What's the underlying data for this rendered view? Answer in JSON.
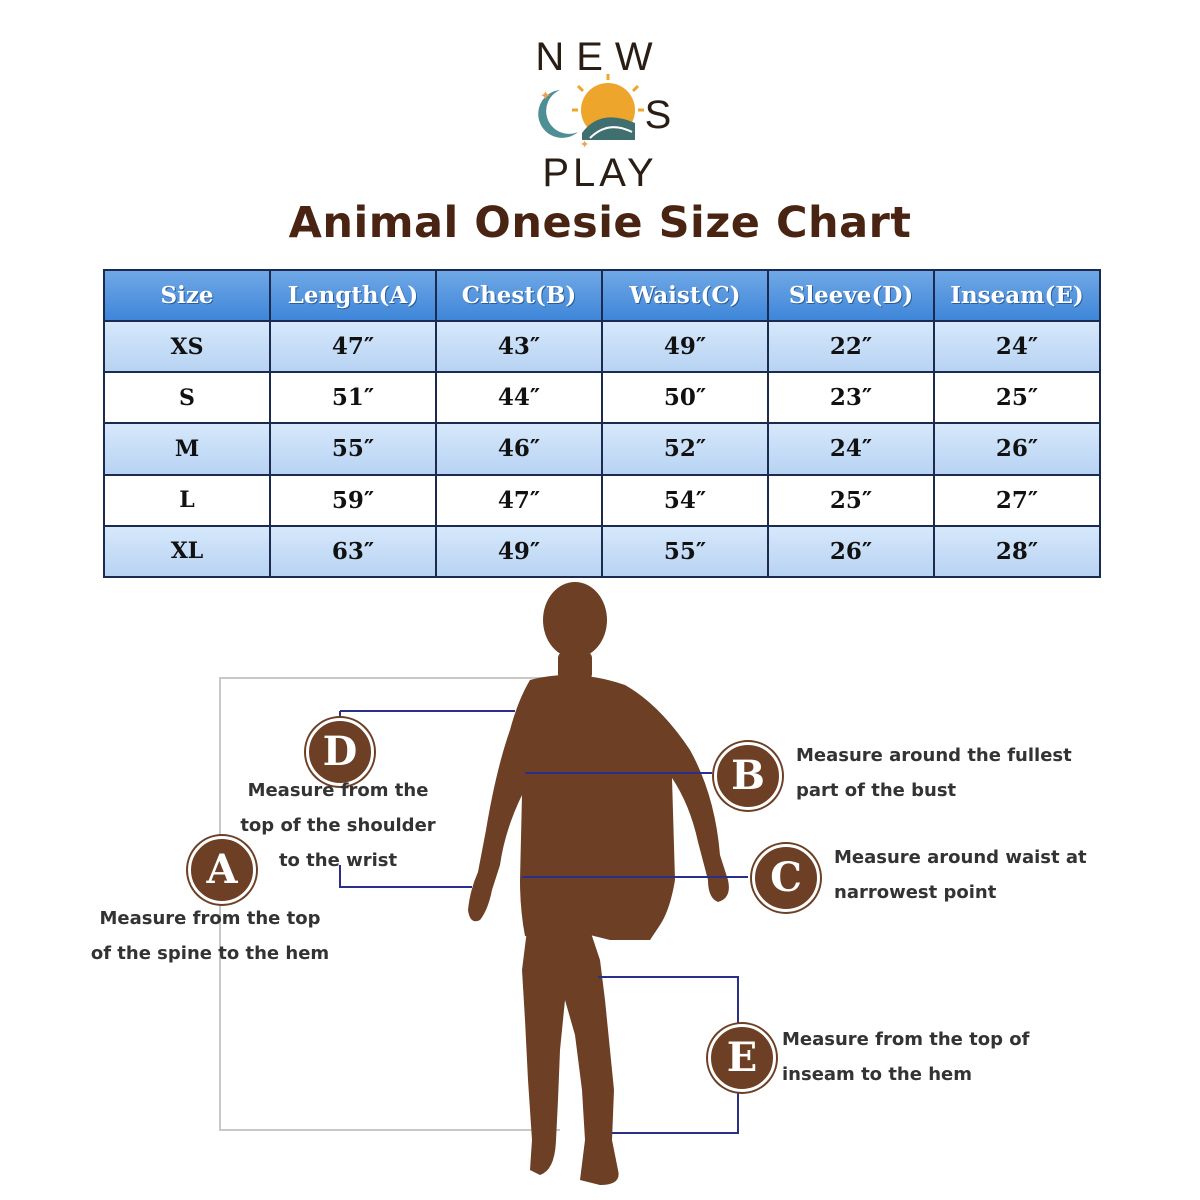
{
  "logo": {
    "line1": "NEW",
    "line2": "COS",
    "line3": "PLAY"
  },
  "title": "Animal Onesie Size Chart",
  "table": {
    "headers": [
      "Size",
      "Length(A)",
      "Chest(B)",
      "Waist(C)",
      "Sleeve(D)",
      "Inseam(E)"
    ],
    "rows": [
      [
        "XS",
        "47″",
        "43″",
        "49″",
        "22″",
        "24″"
      ],
      [
        "S",
        "51″",
        "44″",
        "50″",
        "23″",
        "25″"
      ],
      [
        "M",
        "55″",
        "46″",
        "52″",
        "24″",
        "26″"
      ],
      [
        "L",
        "59″",
        "47″",
        "54″",
        "25″",
        "27″"
      ],
      [
        "XL",
        "63″",
        "49″",
        "55″",
        "26″",
        "28″"
      ]
    ]
  },
  "measurements": {
    "A": {
      "letter": "A",
      "line1": "Measure from the top",
      "line2": "of the spine to the hem"
    },
    "B": {
      "letter": "B",
      "line1": "Measure around the fullest",
      "line2": "part of the bust"
    },
    "C": {
      "letter": "C",
      "line1": "Measure around waist at",
      "line2": "narrowest point"
    },
    "D": {
      "letter": "D",
      "line1": "Measure from the",
      "line2": "top of the shoulder",
      "line3": "to the wrist"
    },
    "E": {
      "letter": "E",
      "line1": "Measure from the top of",
      "line2": "inseam to the hem"
    }
  },
  "colors": {
    "title": "#4a2413",
    "header_blue": "#3f86d9",
    "row_blue": "#c5dcf6",
    "silhouette": "#6d3f25",
    "guide_line": "#2a2f8a"
  }
}
